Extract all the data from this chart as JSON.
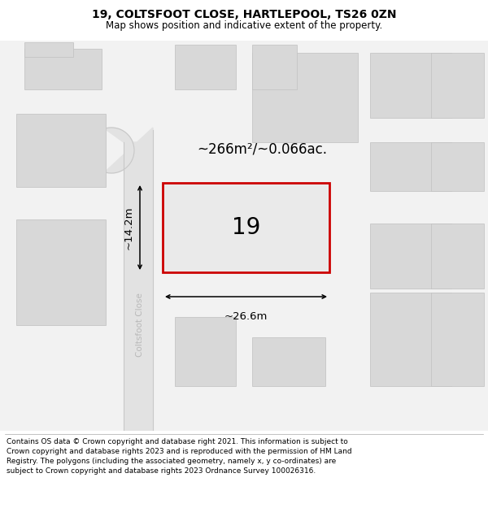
{
  "title_line1": "19, COLTSFOOT CLOSE, HARTLEPOOL, TS26 0ZN",
  "title_line2": "Map shows position and indicative extent of the property.",
  "footer_text": "Contains OS data © Crown copyright and database right 2021. This information is subject to Crown copyright and database rights 2023 and is reproduced with the permission of HM Land Registry. The polygons (including the associated geometry, namely x, y co-ordinates) are subject to Crown copyright and database rights 2023 Ordnance Survey 100026316.",
  "map_bg": "#f2f2f2",
  "road_color": "#e0e0e0",
  "red_line_color": "#cc0000",
  "pink_line_color": "#f5a0a0",
  "building_fill": "#d8d8d8",
  "building_outline": "#c0c0c0",
  "subject_fill": "#e8e8e8",
  "area_label": "~266m²/~0.066ac.",
  "number_label": "19",
  "width_label": "~26.6m",
  "height_label": "~14.2m",
  "street_label": "Coltsfoot Close"
}
